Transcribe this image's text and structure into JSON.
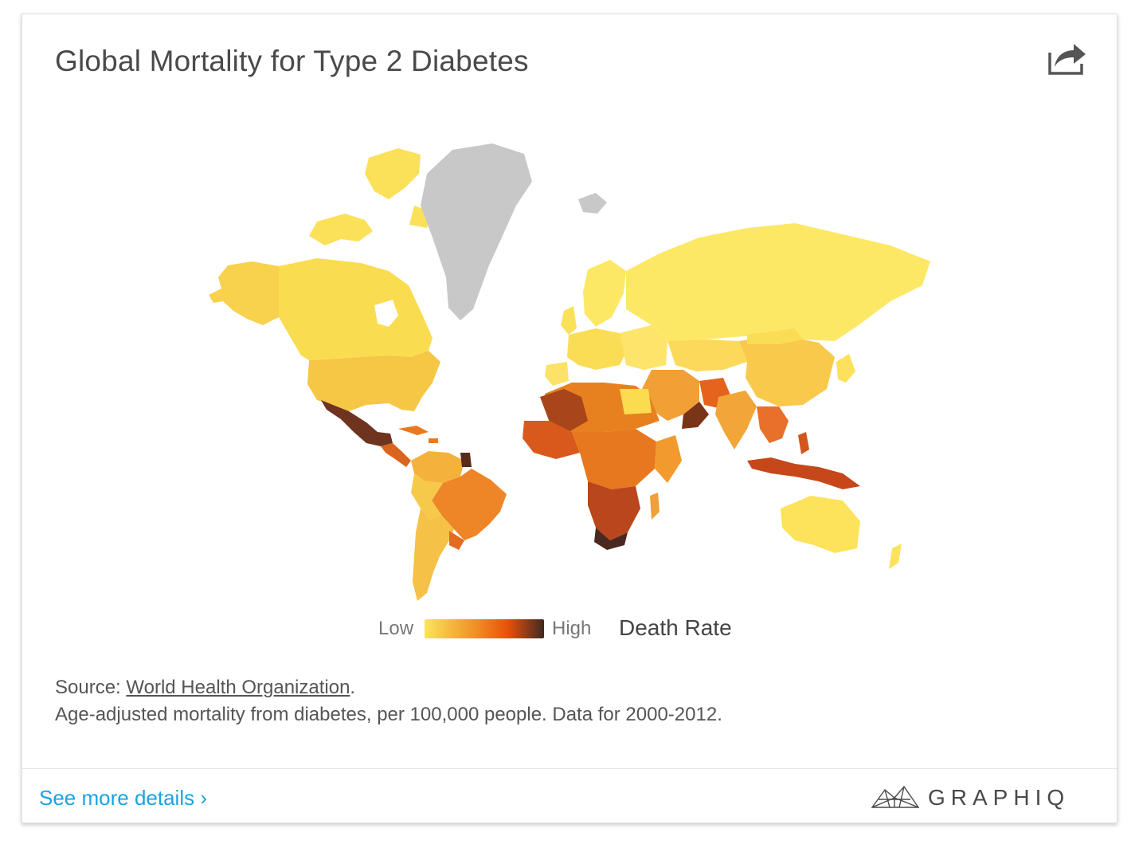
{
  "header": {
    "title": "Global Mortality for Type 2 Diabetes",
    "share_icon": "share-icon"
  },
  "map": {
    "type": "choropleth",
    "color_scale": {
      "low_color": "#fbe45a",
      "mid_color": "#f08a24",
      "high_color": "#e8500a",
      "max_color": "#3e2a22",
      "no_data_color": "#c8c8c8"
    }
  },
  "legend": {
    "low_label": "Low",
    "high_label": "High",
    "metric_label": "Death Rate"
  },
  "footer_text": {
    "source_prefix": "Source: ",
    "source_link": "World Health Organization",
    "source_suffix": ".",
    "note": "Age-adjusted mortality from diabetes, per 100,000 people. Data for 2000-2012."
  },
  "footer": {
    "see_more": "See more details ›",
    "brand": "GRAPHIQ"
  }
}
